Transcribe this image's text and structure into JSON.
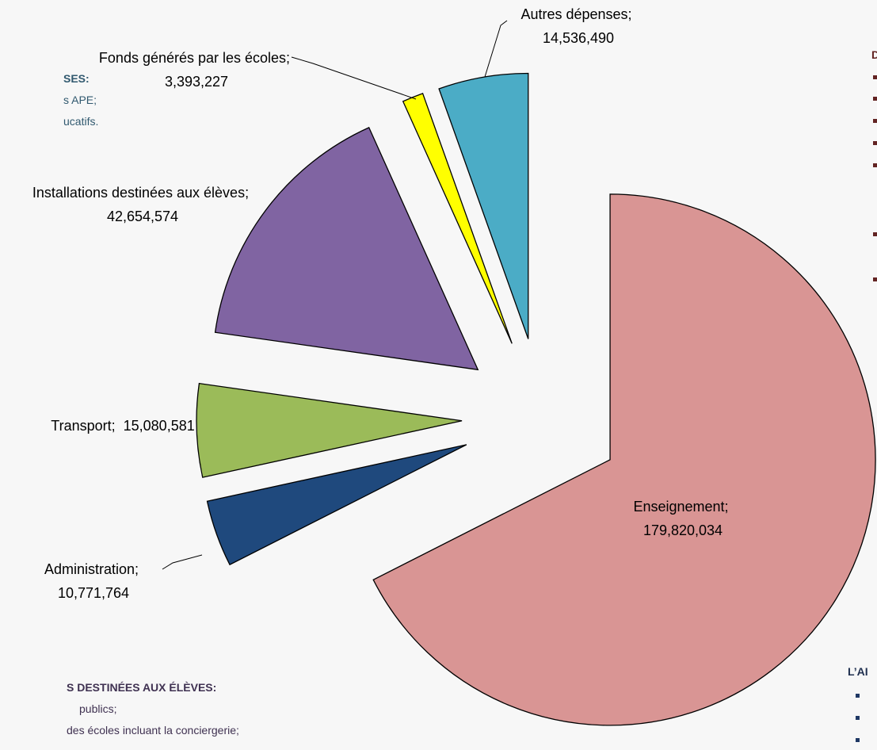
{
  "chart_data": {
    "type": "pie",
    "categories": [
      "Enseignement;",
      "Administration;",
      "Transport;",
      "Installations destinées aux élèves;",
      "Fonds générés par les écoles;",
      "Autres dépenses;"
    ],
    "values": [
      179820034,
      10771764,
      15080581,
      42654574,
      3393227,
      14536490
    ],
    "value_labels": [
      "179,820,034",
      "10,771,764",
      "15,080,581",
      "42,654,574",
      "3,393,227",
      "14,536,490"
    ],
    "colors": [
      "#d99594",
      "#1f497d",
      "#9bbb59",
      "#8064a2",
      "#ffff00",
      "#4bacc6"
    ]
  },
  "background_text": {
    "left_top": [
      "SES:",
      "s APE;",
      "ucatifs."
    ],
    "left_bottom": [
      "S DESTINÉES AUX ÉLÈVES:",
      "publics;",
      "des écoles incluant la conciergerie;"
    ],
    "right_top": "D",
    "right_bottom": "L’AI"
  }
}
